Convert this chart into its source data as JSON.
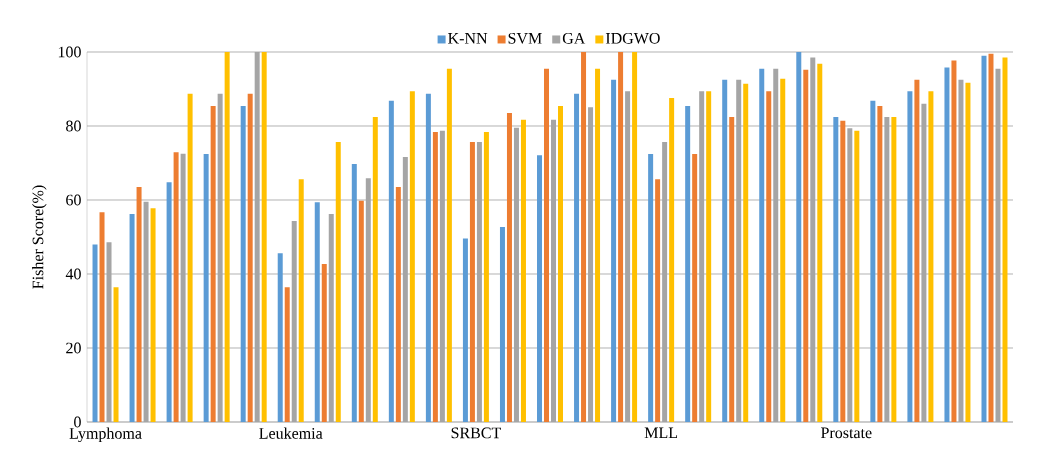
{
  "chart_data": {
    "type": "bar",
    "ylabel": "Fisher Score(%)",
    "categories": [
      "Lymphoma",
      null,
      null,
      null,
      null,
      "Leukemia",
      null,
      null,
      null,
      null,
      "SRBCT",
      null,
      null,
      null,
      null,
      "MLL",
      null,
      null,
      null,
      null,
      "Prostate",
      null,
      null,
      null,
      null
    ],
    "series": [
      {
        "name": "K-NN",
        "color": "#5b9bd5",
        "values": [
          48.0,
          56.2,
          64.8,
          72.4,
          85.4,
          45.6,
          59.4,
          69.7,
          86.8,
          88.7,
          49.6,
          52.7,
          72.1,
          88.7,
          92.5,
          72.4,
          85.4,
          92.5,
          95.5,
          100,
          82.4,
          86.8,
          89.4,
          95.8,
          99.0
        ]
      },
      {
        "name": "SVM",
        "color": "#ed7d31",
        "values": [
          56.7,
          63.5,
          72.9,
          85.4,
          88.7,
          36.4,
          42.7,
          59.8,
          63.5,
          78.4,
          75.7,
          83.5,
          95.5,
          100,
          100,
          65.6,
          72.4,
          82.4,
          89.4,
          95.2,
          81.4,
          85.4,
          92.5,
          97.7,
          99.5
        ]
      },
      {
        "name": "GA",
        "color": "#a5a5a5",
        "values": [
          48.6,
          59.5,
          72.5,
          88.7,
          100,
          54.3,
          56.2,
          65.9,
          71.6,
          78.7,
          75.7,
          79.5,
          81.7,
          85.1,
          89.4,
          75.7,
          89.4,
          92.5,
          95.5,
          98.5,
          79.4,
          82.4,
          86.0,
          92.5,
          95.5
        ]
      },
      {
        "name": "IDGWO",
        "color": "#ffc000",
        "values": [
          36.4,
          57.8,
          88.7,
          100,
          100,
          65.6,
          75.7,
          82.4,
          89.4,
          95.5,
          78.4,
          81.7,
          85.4,
          95.5,
          100,
          87.6,
          89.4,
          91.4,
          92.8,
          96.8,
          78.7,
          82.4,
          89.4,
          91.7,
          98.5
        ]
      }
    ],
    "ylim": [
      0,
      100
    ],
    "yticks": [
      0,
      20,
      40,
      60,
      80,
      100
    ],
    "grid": "y",
    "legend": "top"
  }
}
